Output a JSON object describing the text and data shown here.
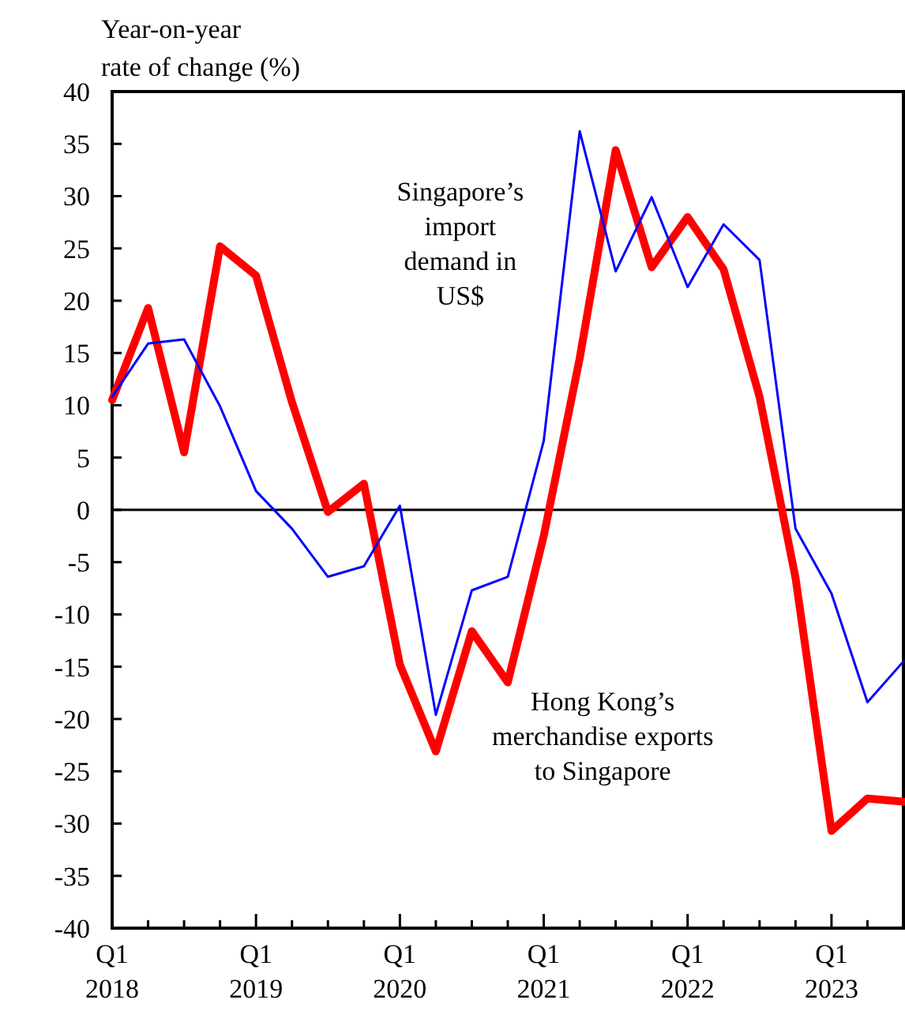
{
  "chart_data": {
    "type": "line",
    "ylabel": "Year-on-year\nrate of change (%)",
    "categories": [
      "Q1\n2018",
      null,
      null,
      null,
      "Q1\n2019",
      null,
      null,
      null,
      "Q1\n2020",
      null,
      null,
      null,
      "Q1\n2021",
      null,
      null,
      null,
      "Q1\n2022",
      null,
      null,
      null,
      "Q1\n2023",
      null,
      null
    ],
    "series": [
      {
        "name": "Hong Kong’s merchandise exports to Singapore",
        "color": "#ff0000",
        "values": [
          10.5,
          19.3,
          5.5,
          25.2,
          22.4,
          10.3,
          -0.2,
          2.5,
          -14.8,
          -23.1,
          -11.6,
          -16.5,
          -2.5,
          14.5,
          34.4,
          23.2,
          28.0,
          23.0,
          10.8,
          -6.5,
          -30.7,
          -27.6,
          -27.9
        ]
      },
      {
        "name": "Singapore’s import demand in US$",
        "color": "#0000ff",
        "values": [
          10.8,
          15.9,
          16.3,
          9.9,
          1.8,
          -1.8,
          -6.4,
          -5.4,
          0.4,
          -19.6,
          -7.7,
          -6.4,
          6.6,
          36.2,
          22.8,
          29.9,
          21.3,
          27.3,
          23.9,
          -1.8,
          -8.0,
          -18.4,
          -14.5
        ]
      }
    ],
    "ylim": [
      -40,
      40
    ],
    "yticks": [
      -40,
      -35,
      -30,
      -25,
      -20,
      -15,
      -10,
      -5,
      0,
      5,
      10,
      15,
      20,
      25,
      30,
      35,
      40
    ],
    "ref_lines": [
      {
        "axis": "y",
        "value": 0,
        "color": "#000000"
      }
    ],
    "grid": false,
    "legend": false,
    "marker": "none",
    "line_style": "solid"
  }
}
